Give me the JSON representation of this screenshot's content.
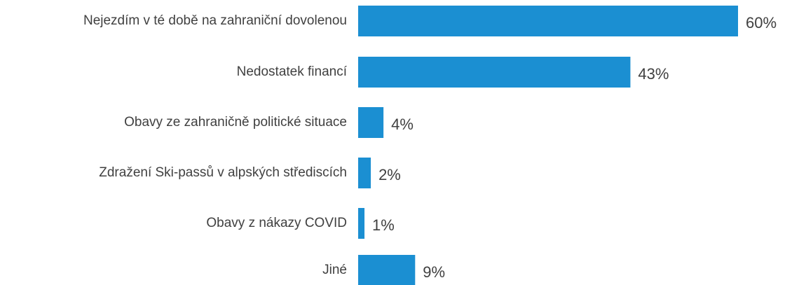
{
  "chart_data": {
    "type": "bar",
    "orientation": "horizontal",
    "categories": [
      "Nejezdím v té době na zahraniční dovolenou",
      "Nedostatek financí",
      "Obavy ze zahraničně politické situace",
      "Zdražení Ski-passů v alpských střediscích",
      "Obavy z nákazy COVID",
      "Jiné"
    ],
    "values": [
      60,
      43,
      4,
      2,
      1,
      9
    ],
    "value_labels": [
      "60%",
      "43%",
      "4%",
      "2%",
      "1%",
      "9%"
    ],
    "color": "#1b8fd2"
  }
}
